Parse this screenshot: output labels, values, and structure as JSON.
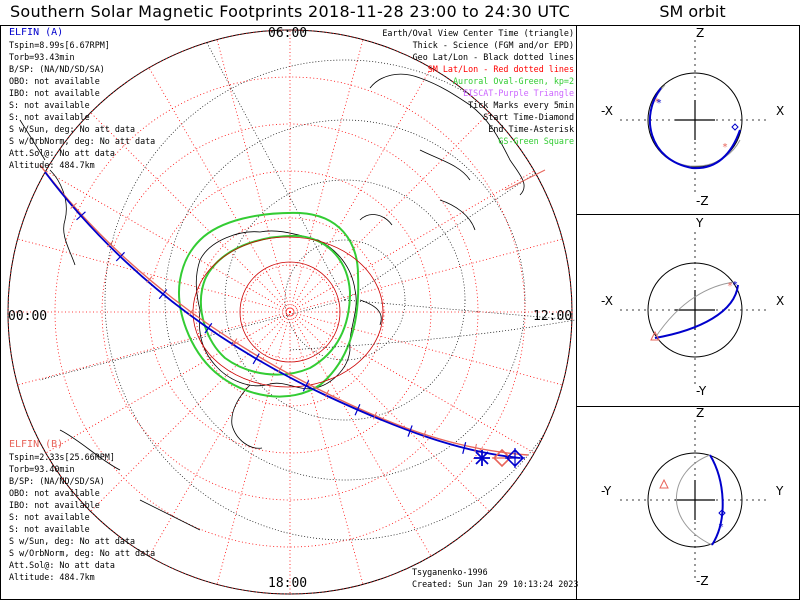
{
  "title": "Southern Solar Magnetic Footprints 2018-11-28 23:00 to 24:30 UTC",
  "orbit_title": "SM orbit",
  "hour_labels": {
    "top": "06:00",
    "left": "00:00",
    "right": "12:00",
    "bottom": "18:00"
  },
  "probe_a": {
    "name": "ELFIN (A)",
    "lines": [
      "Tspin=8.99s[6.67RPM]",
      "Torb=93.43min",
      "B/SP: (NA/ND/SD/SA)",
      "OBO: not available",
      "IBO: not available",
      "S: not available",
      "S: not available",
      "S w/Sun, deg: No att data",
      "S w/OrbNorm, deg: No att data",
      "Att.Sol@: No att data",
      "Altitude: 484.7km"
    ]
  },
  "probe_b": {
    "name": "ELFIN (B)",
    "lines": [
      "Tspin=2.33s[25.66RPM]",
      "Torb=93.40min",
      "B/SP: (NA/ND/SD/SA)",
      "OBO: not available",
      "IBO: not available",
      "S: not available",
      "S: not available",
      "S w/Sun, deg: No att data",
      "S w/OrbNorm, deg: No att data",
      "Att.Sol@: No att data",
      "Altitude: 484.7km"
    ]
  },
  "legend": [
    {
      "text": "Earth/Oval View Center Time (triangle)",
      "color": "#000000"
    },
    {
      "text": "Thick - Science (FGM and/or EPD)",
      "color": "#000000"
    },
    {
      "text": "Geo Lat/Lon - Black dotted lines",
      "color": "#000000"
    },
    {
      "text": "SM Lat/Lon - Red dotted lines",
      "color": "#ff0000"
    },
    {
      "text": "Auroral Oval-Green, kp=2",
      "color": "#33cc33"
    },
    {
      "text": "EISCAT-Purple Triangle",
      "color": "#cc66ff"
    },
    {
      "text": "Tick Marks every 5min",
      "color": "#000000"
    },
    {
      "text": "Start Time-Diamond",
      "color": "#000000"
    },
    {
      "text": "End Time-Asterisk",
      "color": "#000000"
    },
    {
      "text": "GS-Green Square",
      "color": "#33cc33"
    }
  ],
  "credits": {
    "author": "Tsyganenko-1996",
    "created": "Created: Sun Jan 29 10:13:24 2023"
  },
  "orbit_panels": [
    {
      "top": "Z",
      "bottom": "-Z",
      "left": "-X",
      "right": "X"
    },
    {
      "top": "Y",
      "bottom": "-Y",
      "left": "-X",
      "right": "X"
    },
    {
      "top": "Z",
      "bottom": "-Z",
      "left": "-Y",
      "right": "Y"
    }
  ],
  "colors": {
    "probe_a": "#0000cc",
    "probe_b": "#e8645a",
    "oval": "#33cc33",
    "sm_grid": "#ff0000"
  },
  "chart_data": {
    "type": "scatter",
    "projection": "polar",
    "title": "Southern Solar Magnetic Footprints 2018-11-28 23:00 to 24:30 UTC",
    "series": [
      {
        "name": "ELFIN (A)",
        "color": "#0000cc"
      },
      {
        "name": "ELFIN (B)",
        "color": "#e8645a"
      }
    ]
  }
}
